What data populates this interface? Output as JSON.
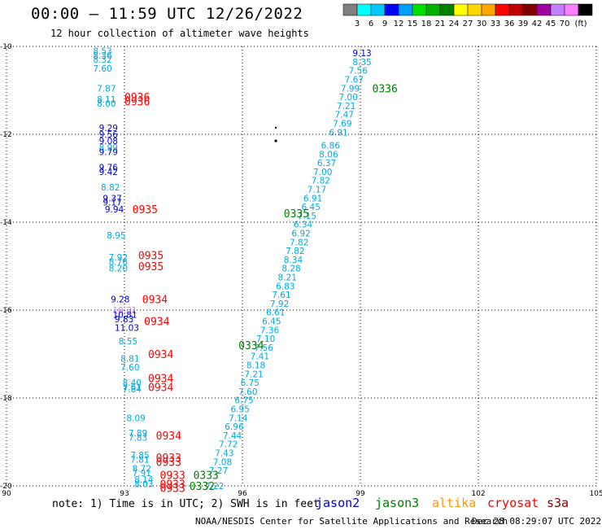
{
  "title": "00:00 – 11:59 UTC 12/26/2022",
  "subtitle": "12 hour collection of altimeter wave heights",
  "note": "note: 1) Time is in UTC; 2) SWH is in feet",
  "credit": "NOAA/NESDIS Center for Satellite Applications and Research",
  "stamp": "Dec 28 08:29:07 UTC 2022",
  "colorbar": {
    "unit": "(ft)",
    "ticks": [
      "3",
      "6",
      "9",
      "12",
      "15",
      "18",
      "21",
      "24",
      "27",
      "30",
      "33",
      "36",
      "39",
      "42",
      "45",
      "70"
    ],
    "colors": [
      "#808080",
      "#00ffff",
      "#00c8ff",
      "#0000ff",
      "#00a0ff",
      "#00e000",
      "#00b000",
      "#008000",
      "#ffff00",
      "#ffd700",
      "#ffa500",
      "#ff0000",
      "#c00000",
      "#800000",
      "#a000a0",
      "#c080ff",
      "#ff80ff",
      "#000000"
    ]
  },
  "map": {
    "lon_ticks": [
      "90",
      "93",
      "96",
      "99",
      "102",
      "105"
    ],
    "lat_ticks": [
      "-10",
      "-12",
      "-14",
      "-16",
      "-18",
      "-20"
    ],
    "lon_range": [
      90,
      105
    ],
    "lat_range": [
      -20,
      -10
    ]
  },
  "satellites": [
    {
      "name": "jason2",
      "color": "#0000cc"
    },
    {
      "name": "jason3",
      "color": "#008000"
    },
    {
      "name": "altika",
      "color": "#ff9900"
    },
    {
      "name": "cryosat",
      "color": "#ff0000"
    },
    {
      "name": "s3a",
      "color": "#800000"
    }
  ],
  "track_labels": [
    {
      "text": "0336",
      "lon": 99.3,
      "lat": -10.95,
      "color": "#008000"
    },
    {
      "text": "0335",
      "lon": 97.05,
      "lat": -13.8,
      "color": "#008000"
    },
    {
      "text": "0334",
      "lon": 95.9,
      "lat": -16.8,
      "color": "#008000"
    },
    {
      "text": "0333",
      "lon": 94.75,
      "lat": -19.75,
      "color": "#008000"
    },
    {
      "text": "0332",
      "lon": 94.65,
      "lat": -20.0,
      "color": "#008000"
    },
    {
      "text": "0936",
      "lon": 93.0,
      "lat": -11.15,
      "color": "#ff0000"
    },
    {
      "text": "0936",
      "lon": 93.0,
      "lat": -11.25,
      "color": "#ff0000"
    },
    {
      "text": "0935",
      "lon": 93.2,
      "lat": -13.7,
      "color": "#ff0000"
    },
    {
      "text": "0935",
      "lon": 93.35,
      "lat": -14.75,
      "color": "#ff0000"
    },
    {
      "text": "0935",
      "lon": 93.35,
      "lat": -15.0,
      "color": "#ff0000"
    },
    {
      "text": "0934",
      "lon": 93.45,
      "lat": -15.75,
      "color": "#ff0000"
    },
    {
      "text": "0934",
      "lon": 93.5,
      "lat": -16.25,
      "color": "#ff0000"
    },
    {
      "text": "0934",
      "lon": 93.6,
      "lat": -17.0,
      "color": "#ff0000"
    },
    {
      "text": "0934",
      "lon": 93.6,
      "lat": -17.55,
      "color": "#ff0000"
    },
    {
      "text": "0934",
      "lon": 93.6,
      "lat": -17.75,
      "color": "#ff0000"
    },
    {
      "text": "0934",
      "lon": 93.8,
      "lat": -18.85,
      "color": "#ff0000"
    },
    {
      "text": "0933",
      "lon": 93.8,
      "lat": -19.35,
      "color": "#ff0000"
    },
    {
      "text": "0933",
      "lon": 93.8,
      "lat": -19.45,
      "color": "#ff0000"
    },
    {
      "text": "0933",
      "lon": 93.9,
      "lat": -19.75,
      "color": "#ff0000"
    },
    {
      "text": "0933",
      "lon": 93.9,
      "lat": -19.95,
      "color": "#ff0000"
    },
    {
      "text": "0933",
      "lon": 93.9,
      "lat": -20.05,
      "color": "#ff0000"
    }
  ],
  "swh_points": [
    {
      "v": "9.13",
      "lon": 98.8,
      "lat": -10.15,
      "c": "#0000cc"
    },
    {
      "v": "8.35",
      "lon": 98.8,
      "lat": -10.35,
      "c": "#00aadd"
    },
    {
      "v": "7.56",
      "lon": 98.7,
      "lat": -10.55,
      "c": "#00aadd"
    },
    {
      "v": "7.67",
      "lon": 98.6,
      "lat": -10.75,
      "c": "#00aadd"
    },
    {
      "v": "7.99",
      "lon": 98.5,
      "lat": -10.95,
      "c": "#00aadd"
    },
    {
      "v": "7.00",
      "lon": 98.45,
      "lat": -11.15,
      "c": "#00aadd"
    },
    {
      "v": "7.21",
      "lon": 98.4,
      "lat": -11.35,
      "c": "#00aadd"
    },
    {
      "v": "7.47",
      "lon": 98.35,
      "lat": -11.55,
      "c": "#00aadd"
    },
    {
      "v": "7.69",
      "lon": 98.3,
      "lat": -11.75,
      "c": "#00aadd"
    },
    {
      "v": "6.91",
      "lon": 98.2,
      "lat": -11.95,
      "c": "#00aadd"
    },
    {
      "v": "6.86",
      "lon": 98.0,
      "lat": -12.25,
      "c": "#00aadd"
    },
    {
      "v": "8.06",
      "lon": 97.95,
      "lat": -12.45,
      "c": "#00aadd"
    },
    {
      "v": "6.37",
      "lon": 97.9,
      "lat": -12.65,
      "c": "#00aadd"
    },
    {
      "v": "7.00",
      "lon": 97.8,
      "lat": -12.85,
      "c": "#00aadd"
    },
    {
      "v": "7.82",
      "lon": 97.75,
      "lat": -13.05,
      "c": "#00aadd"
    },
    {
      "v": "7.17",
      "lon": 97.65,
      "lat": -13.25,
      "c": "#00aadd"
    },
    {
      "v": "6.91",
      "lon": 97.55,
      "lat": -13.45,
      "c": "#00aadd"
    },
    {
      "v": "6.45",
      "lon": 97.5,
      "lat": -13.65,
      "c": "#00aadd"
    },
    {
      "v": "7.15",
      "lon": 97.4,
      "lat": -13.85,
      "c": "#00aadd"
    },
    {
      "v": "6.34",
      "lon": 97.3,
      "lat": -14.05,
      "c": "#00aadd"
    },
    {
      "v": "6.92",
      "lon": 97.25,
      "lat": -14.25,
      "c": "#00aadd"
    },
    {
      "v": "7.82",
      "lon": 97.2,
      "lat": -14.45,
      "c": "#00aadd"
    },
    {
      "v": "7.82",
      "lon": 97.1,
      "lat": -14.65,
      "c": "#00aadd"
    },
    {
      "v": "8.34",
      "lon": 97.05,
      "lat": -14.85,
      "c": "#00aadd"
    },
    {
      "v": "8.28",
      "lon": 97.0,
      "lat": -15.05,
      "c": "#00aadd"
    },
    {
      "v": "8.21",
      "lon": 96.9,
      "lat": -15.25,
      "c": "#00aadd"
    },
    {
      "v": "6.83",
      "lon": 96.85,
      "lat": -15.45,
      "c": "#00aadd"
    },
    {
      "v": "7.61",
      "lon": 96.75,
      "lat": -15.65,
      "c": "#00aadd"
    },
    {
      "v": "7.92",
      "lon": 96.7,
      "lat": -15.85,
      "c": "#00aadd"
    },
    {
      "v": "6.61",
      "lon": 96.6,
      "lat": -16.05,
      "c": "#00aadd"
    },
    {
      "v": "6.45",
      "lon": 96.5,
      "lat": -16.25,
      "c": "#00aadd"
    },
    {
      "v": "7.36",
      "lon": 96.45,
      "lat": -16.45,
      "c": "#00aadd"
    },
    {
      "v": "7.10",
      "lon": 96.35,
      "lat": -16.65,
      "c": "#00aadd"
    },
    {
      "v": "7.56",
      "lon": 96.3,
      "lat": -16.85,
      "c": "#00aadd"
    },
    {
      "v": "7.41",
      "lon": 96.2,
      "lat": -17.05,
      "c": "#00aadd"
    },
    {
      "v": "8.18",
      "lon": 96.1,
      "lat": -17.25,
      "c": "#00aadd"
    },
    {
      "v": "7.21",
      "lon": 96.05,
      "lat": -17.45,
      "c": "#00aadd"
    },
    {
      "v": "6.75",
      "lon": 95.95,
      "lat": -17.65,
      "c": "#00aadd"
    },
    {
      "v": "7.60",
      "lon": 95.9,
      "lat": -17.85,
      "c": "#00aadd"
    },
    {
      "v": "6.75",
      "lon": 95.8,
      "lat": -18.05,
      "c": "#00aadd"
    },
    {
      "v": "6.95",
      "lon": 95.7,
      "lat": -18.25,
      "c": "#00aadd"
    },
    {
      "v": "7.14",
      "lon": 95.65,
      "lat": -18.45,
      "c": "#00aadd"
    },
    {
      "v": "6.96",
      "lon": 95.55,
      "lat": -18.65,
      "c": "#00aadd"
    },
    {
      "v": "7.44",
      "lon": 95.5,
      "lat": -18.85,
      "c": "#00aadd"
    },
    {
      "v": "7.72",
      "lon": 95.4,
      "lat": -19.05,
      "c": "#00aadd"
    },
    {
      "v": "7.43",
      "lon": 95.3,
      "lat": -19.25,
      "c": "#00aadd"
    },
    {
      "v": "7.08",
      "lon": 95.25,
      "lat": -19.45,
      "c": "#00aadd"
    },
    {
      "v": "7.27",
      "lon": 95.15,
      "lat": -19.65,
      "c": "#00aadd"
    },
    {
      "v": "7.22",
      "lon": 95.05,
      "lat": -20.0,
      "c": "#00aadd"
    },
    {
      "v": "8.53",
      "lon": 92.2,
      "lat": -10.1,
      "c": "#00aadd"
    },
    {
      "v": "8.36",
      "lon": 92.2,
      "lat": -10.2,
      "c": "#00aadd"
    },
    {
      "v": "8.32",
      "lon": 92.2,
      "lat": -10.3,
      "c": "#00aadd"
    },
    {
      "v": "7.60",
      "lon": 92.2,
      "lat": -10.5,
      "c": "#00aadd"
    },
    {
      "v": "7.87",
      "lon": 92.3,
      "lat": -10.95,
      "c": "#00aadd"
    },
    {
      "v": "8.11",
      "lon": 92.3,
      "lat": -11.2,
      "c": "#00aadd"
    },
    {
      "v": "8.00",
      "lon": 92.3,
      "lat": -11.3,
      "c": "#00aadd"
    },
    {
      "v": "9.29",
      "lon": 92.35,
      "lat": -11.85,
      "c": "#0000cc"
    },
    {
      "v": "9.56",
      "lon": 92.35,
      "lat": -12.0,
      "c": "#0000cc"
    },
    {
      "v": "9.08",
      "lon": 92.35,
      "lat": -12.15,
      "c": "#0000cc"
    },
    {
      "v": "8.99",
      "lon": 92.35,
      "lat": -12.3,
      "c": "#00aadd"
    },
    {
      "v": "9.79",
      "lon": 92.35,
      "lat": -12.4,
      "c": "#0000cc"
    },
    {
      "v": "9.76",
      "lon": 92.35,
      "lat": -12.75,
      "c": "#0000cc"
    },
    {
      "v": "9.42",
      "lon": 92.35,
      "lat": -12.85,
      "c": "#0000cc"
    },
    {
      "v": "8.82",
      "lon": 92.4,
      "lat": -13.2,
      "c": "#00aadd"
    },
    {
      "v": "9.37",
      "lon": 92.45,
      "lat": -13.45,
      "c": "#0000cc"
    },
    {
      "v": "9.17",
      "lon": 92.45,
      "lat": -13.55,
      "c": "#0000cc"
    },
    {
      "v": "9.94",
      "lon": 92.5,
      "lat": -13.7,
      "c": "#0000cc"
    },
    {
      "v": "8.95",
      "lon": 92.55,
      "lat": -14.3,
      "c": "#00aadd"
    },
    {
      "v": "7.92",
      "lon": 92.6,
      "lat": -14.8,
      "c": "#00aadd"
    },
    {
      "v": "8.76",
      "lon": 92.6,
      "lat": -14.9,
      "c": "#00aadd"
    },
    {
      "v": "8.20",
      "lon": 92.6,
      "lat": -15.05,
      "c": "#00aadd"
    },
    {
      "v": "9.28",
      "lon": 92.65,
      "lat": -15.75,
      "c": "#0000cc"
    },
    {
      "v": "10.31",
      "lon": 92.7,
      "lat": -16.0,
      "c": "#c080ff"
    },
    {
      "v": "10.81",
      "lon": 92.7,
      "lat": -16.1,
      "c": "#0000cc"
    },
    {
      "v": "9.83",
      "lon": 92.75,
      "lat": -16.2,
      "c": "#0000cc"
    },
    {
      "v": "11.03",
      "lon": 92.75,
      "lat": -16.4,
      "c": "#0000cc"
    },
    {
      "v": "8.55",
      "lon": 92.85,
      "lat": -16.7,
      "c": "#00aadd"
    },
    {
      "v": "8.81",
      "lon": 92.9,
      "lat": -17.1,
      "c": "#00aadd"
    },
    {
      "v": "7.60",
      "lon": 92.9,
      "lat": -17.3,
      "c": "#00aadd"
    },
    {
      "v": "8.40",
      "lon": 92.95,
      "lat": -17.65,
      "c": "#00aadd"
    },
    {
      "v": "7.61",
      "lon": 92.95,
      "lat": -17.75,
      "c": "#00aadd"
    },
    {
      "v": "7.84",
      "lon": 92.95,
      "lat": -17.8,
      "c": "#00aadd"
    },
    {
      "v": "8.09",
      "lon": 93.05,
      "lat": -18.45,
      "c": "#00aadd"
    },
    {
      "v": "7.89",
      "lon": 93.1,
      "lat": -18.8,
      "c": "#00aadd"
    },
    {
      "v": "7.83",
      "lon": 93.1,
      "lat": -18.9,
      "c": "#00aadd"
    },
    {
      "v": "7.85",
      "lon": 93.15,
      "lat": -19.3,
      "c": "#00aadd"
    },
    {
      "v": "7.81",
      "lon": 93.15,
      "lat": -19.4,
      "c": "#00aadd"
    },
    {
      "v": "8.72",
      "lon": 93.2,
      "lat": -19.6,
      "c": "#00aadd"
    },
    {
      "v": "7.91",
      "lon": 93.2,
      "lat": -19.7,
      "c": "#00aadd"
    },
    {
      "v": "8.14",
      "lon": 93.25,
      "lat": -19.85,
      "c": "#00aadd"
    },
    {
      "v": "8.03",
      "lon": 93.25,
      "lat": -19.95,
      "c": "#00aadd"
    }
  ]
}
